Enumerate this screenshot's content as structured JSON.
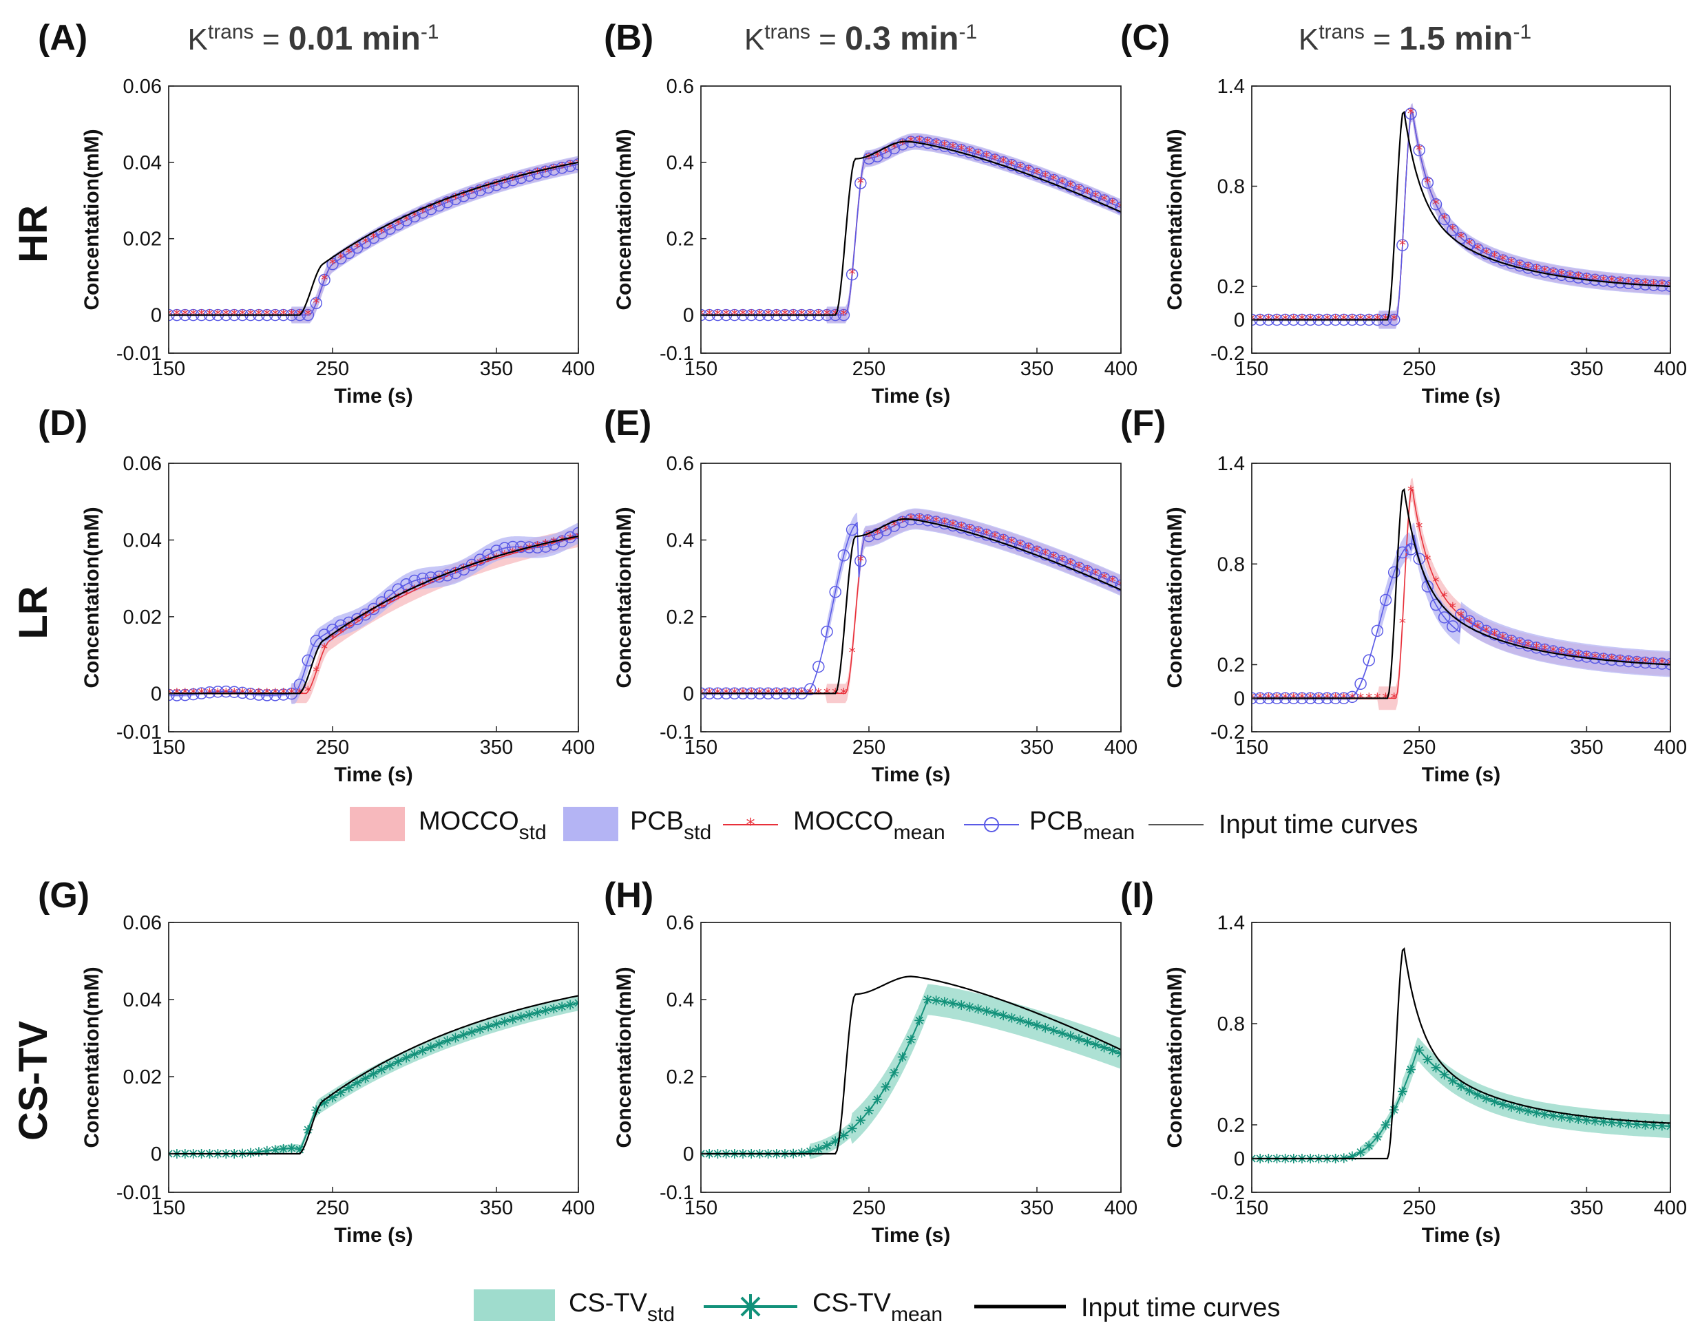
{
  "figure": {
    "column_titles": [
      {
        "symbol": "K",
        "sup": "trans",
        "eq": " = ",
        "value": "0.01 min",
        "exp": "-1"
      },
      {
        "symbol": "K",
        "sup": "trans",
        "eq": " = ",
        "value": "0.3 min",
        "exp": "-1"
      },
      {
        "symbol": "K",
        "sup": "trans",
        "eq": " = ",
        "value": "1.5 min",
        "exp": "-1"
      }
    ],
    "row_labels": [
      "HR",
      "LR",
      "CS-TV"
    ],
    "legend_top": [
      {
        "base": "MOCCO",
        "sub": "std"
      },
      {
        "base": "PCB",
        "sub": "std"
      },
      {
        "base": "MOCCO",
        "sub": "mean"
      },
      {
        "base": "PCB",
        "sub": "mean"
      },
      {
        "base": "Input time curves",
        "sub": ""
      }
    ],
    "legend_bottom": [
      {
        "base": "CS-TV",
        "sub": "std"
      },
      {
        "base": "CS-TV",
        "sub": "mean"
      },
      {
        "base": "Input time curves",
        "sub": ""
      }
    ]
  },
  "colors": {
    "mocco": "#e8303a",
    "mocco_band": "#f7b9bd",
    "pcb": "#5a5ae6",
    "pcb_band": "#b4b4f4",
    "cstv": "#12917a",
    "cstv_band": "#9fdccd",
    "input": "#000000"
  },
  "chart_data": [
    {
      "panel": "(A)",
      "type": "line",
      "row": "HR",
      "ktrans": 0.01,
      "xlabel": "Time (s)",
      "ylabel": "Concentation(mM)",
      "xlim": [
        150,
        400
      ],
      "ylim": [
        -0.01,
        0.06
      ],
      "xticks": [
        "150",
        "250",
        "350",
        "400"
      ],
      "yticks": [
        "-0.01",
        "0",
        "0.02",
        "0.04",
        "0.06"
      ],
      "series": [
        "MOCCO_std",
        "PCB_std",
        "MOCCO_mean",
        "PCB_mean",
        "Input time curves"
      ],
      "t_onset": 230,
      "y_end": 0.04,
      "mocco_delay": 6,
      "pcb_delay": 6,
      "std_width": 0.002
    },
    {
      "panel": "(B)",
      "type": "line",
      "row": "HR",
      "ktrans": 0.3,
      "xlabel": "Time (s)",
      "ylabel": "Concentation(mM)",
      "xlim": [
        150,
        400
      ],
      "ylim": [
        -0.1,
        0.6
      ],
      "xticks": [
        "150",
        "250",
        "350",
        "400"
      ],
      "yticks": [
        "-0.1",
        "0",
        "0.2",
        "0.4",
        "0.6"
      ],
      "series": [
        "MOCCO_std",
        "PCB_std",
        "MOCCO_mean",
        "PCB_mean",
        "Input time curves"
      ],
      "t_onset": 230,
      "y_peak": 0.455,
      "t_peak": 272,
      "y_end": 0.27,
      "mocco_delay": 6,
      "pcb_delay": 6,
      "std_width": 0.02
    },
    {
      "panel": "(C)",
      "type": "line",
      "row": "HR",
      "ktrans": 1.5,
      "xlabel": "Time (s)",
      "ylabel": "Concentation(mM)",
      "xlim": [
        150,
        400
      ],
      "ylim": [
        -0.2,
        1.4
      ],
      "xticks": [
        "150",
        "250",
        "350",
        "400"
      ],
      "yticks": [
        "-0.2",
        "0",
        "0.2",
        "0.8",
        "1.4"
      ],
      "series": [
        "MOCCO_std",
        "PCB_std",
        "MOCCO_mean",
        "PCB_mean",
        "Input time curves"
      ],
      "t_onset": 231,
      "y_peak": 1.27,
      "t_peak": 241,
      "y_end": 0.2,
      "mocco_delay": 5,
      "pcb_delay": 5,
      "std_width": 0.05
    },
    {
      "panel": "(D)",
      "type": "line",
      "row": "LR",
      "ktrans": 0.01,
      "xlabel": "Time (s)",
      "ylabel": "Concentation(mM)",
      "xlim": [
        150,
        400
      ],
      "ylim": [
        -0.01,
        0.06
      ],
      "xticks": [
        "150",
        "250",
        "350",
        "400"
      ],
      "yticks": [
        "-0.01",
        "0",
        "0.02",
        "0.04",
        "0.06"
      ],
      "series": [
        "MOCCO_std",
        "PCB_std",
        "MOCCO_mean",
        "PCB_mean",
        "Input time curves"
      ],
      "t_onset": 230,
      "y_end": 0.041,
      "mocco_delay": 4,
      "pcb_delay": -3,
      "std_width": 0.0025
    },
    {
      "panel": "(E)",
      "type": "line",
      "row": "LR",
      "ktrans": 0.3,
      "xlabel": "Time (s)",
      "ylabel": "Concentation(mM)",
      "xlim": [
        150,
        400
      ],
      "ylim": [
        -0.1,
        0.6
      ],
      "xticks": [
        "150",
        "250",
        "350",
        "400"
      ],
      "yticks": [
        "-0.1",
        "0",
        "0.2",
        "0.4",
        "0.6"
      ],
      "series": [
        "MOCCO_std",
        "PCB_std",
        "MOCCO_mean",
        "PCB_mean",
        "Input time curves"
      ],
      "t_onset": 230,
      "y_peak": 0.455,
      "t_peak": 272,
      "y_end": 0.27,
      "mocco_delay": 6,
      "pcb_delay": -10,
      "std_width": 0.025
    },
    {
      "panel": "(F)",
      "type": "line",
      "row": "LR",
      "ktrans": 1.5,
      "xlabel": "Time (s)",
      "ylabel": "Concentation(mM)",
      "xlim": [
        150,
        400
      ],
      "ylim": [
        -0.2,
        1.4
      ],
      "xticks": [
        "150",
        "250",
        "350",
        "400"
      ],
      "yticks": [
        "-0.2",
        "0",
        "0.2",
        "0.8",
        "1.4"
      ],
      "series": [
        "MOCCO_std",
        "PCB_std",
        "MOCCO_mean",
        "PCB_mean",
        "Input time curves"
      ],
      "t_onset": 231,
      "y_peak": 1.27,
      "t_peak": 241,
      "y_end": 0.2,
      "mocco_delay": 5,
      "pcb_delay": -15,
      "std_width": 0.07
    },
    {
      "panel": "(G)",
      "type": "line",
      "row": "CS-TV",
      "ktrans": 0.01,
      "xlabel": "Time (s)",
      "ylabel": "Concentation(mM)",
      "xlim": [
        150,
        400
      ],
      "ylim": [
        -0.01,
        0.06
      ],
      "xticks": [
        "150",
        "250",
        "350",
        "400"
      ],
      "yticks": [
        "-0.01",
        "0",
        "0.02",
        "0.04",
        "0.06"
      ],
      "series": [
        "CS-TV_std",
        "CS-TV_mean",
        "Input time curves"
      ],
      "t_onset": 230,
      "y_end": 0.041,
      "cstv_end": 0.039,
      "std_width": 0.002
    },
    {
      "panel": "(H)",
      "type": "line",
      "row": "CS-TV",
      "ktrans": 0.3,
      "xlabel": "Time (s)",
      "ylabel": "Concentation(mM)",
      "xlim": [
        150,
        400
      ],
      "ylim": [
        -0.1,
        0.6
      ],
      "xticks": [
        "150",
        "250",
        "350",
        "400"
      ],
      "yticks": [
        "-0.1",
        "0",
        "0.2",
        "0.4",
        "0.6"
      ],
      "series": [
        "CS-TV_std",
        "CS-TV_mean",
        "Input time curves"
      ],
      "t_onset": 230,
      "y_peak": 0.46,
      "t_peak": 275,
      "y_end": 0.27,
      "cstv_peak": 0.4,
      "cstv_t_peak": 285,
      "cstv_end": 0.26,
      "std_width": 0.04
    },
    {
      "panel": "(I)",
      "type": "line",
      "row": "CS-TV",
      "ktrans": 1.5,
      "xlabel": "Time (s)",
      "ylabel": "Concentation(mM)",
      "xlim": [
        150,
        400
      ],
      "ylim": [
        -0.2,
        1.4
      ],
      "xticks": [
        "150",
        "250",
        "350",
        "400"
      ],
      "yticks": [
        "-0.2",
        "0",
        "0.2",
        "0.8",
        "1.4"
      ],
      "series": [
        "CS-TV_std",
        "CS-TV_mean",
        "Input time curves"
      ],
      "t_onset": 231,
      "y_peak": 1.27,
      "t_peak": 240,
      "y_end": 0.21,
      "cstv_peak": 0.68,
      "cstv_t_peak": 250,
      "cstv_end": 0.19,
      "std_width": 0.07
    }
  ]
}
